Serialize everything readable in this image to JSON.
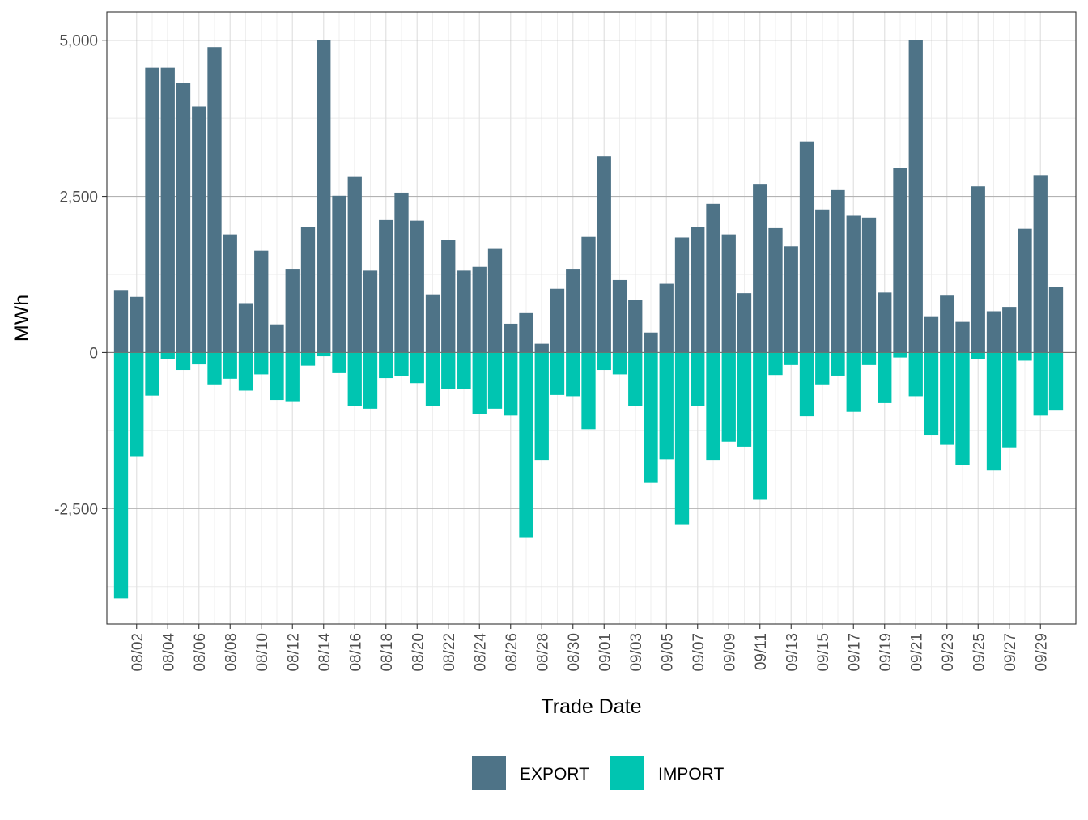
{
  "colors": {
    "export": "#4E7387",
    "import": "#00C5B1",
    "grid_major": "#b3b3b3",
    "grid_minor": "#ebebeb",
    "panel_border": "#333333",
    "tick_text": "#4d4d4d"
  },
  "chart_data": {
    "type": "bar",
    "title": "",
    "xlabel": "Trade Date",
    "ylabel": "MWh",
    "ylim": [
      -4350,
      5450
    ],
    "y_ticks": [
      -2500,
      0,
      2500,
      5000
    ],
    "y_tick_labels": [
      "-2,500",
      "0",
      "2,500",
      "5,000"
    ],
    "grid": true,
    "legend_position": "bottom",
    "categories": [
      "08/01",
      "08/02",
      "08/03",
      "08/04",
      "08/05",
      "08/06",
      "08/07",
      "08/08",
      "08/09",
      "08/10",
      "08/11",
      "08/12",
      "08/13",
      "08/14",
      "08/15",
      "08/16",
      "08/17",
      "08/18",
      "08/19",
      "08/20",
      "08/21",
      "08/22",
      "08/23",
      "08/24",
      "08/25",
      "08/26",
      "08/27",
      "08/28",
      "08/29",
      "08/30",
      "08/31",
      "09/01",
      "09/02",
      "09/03",
      "09/04",
      "09/05",
      "09/06",
      "09/07",
      "09/08",
      "09/09",
      "09/10",
      "09/11",
      "09/12",
      "09/13",
      "09/14",
      "09/15",
      "09/16",
      "09/17",
      "09/18",
      "09/19",
      "09/20",
      "09/21",
      "09/22",
      "09/23",
      "09/24",
      "09/25",
      "09/26",
      "09/27",
      "09/28",
      "09/29",
      "09/30"
    ],
    "x_tick_labels": [
      "08/02",
      "08/04",
      "08/06",
      "08/08",
      "08/10",
      "08/12",
      "08/14",
      "08/16",
      "08/18",
      "08/20",
      "08/22",
      "08/24",
      "08/26",
      "08/28",
      "08/30",
      "09/01",
      "09/03",
      "09/05",
      "09/07",
      "09/09",
      "09/11",
      "09/13",
      "09/15",
      "09/17",
      "09/19",
      "09/21",
      "09/23",
      "09/25",
      "09/27",
      "09/29"
    ],
    "series": [
      {
        "name": "EXPORT",
        "values": [
          1000,
          890,
          4560,
          4560,
          4310,
          3940,
          4890,
          1890,
          790,
          1630,
          450,
          1340,
          2010,
          5000,
          2510,
          2810,
          1310,
          2120,
          2560,
          2110,
          930,
          1800,
          1310,
          1370,
          1670,
          460,
          630,
          140,
          1020,
          1340,
          1850,
          3140,
          1160,
          840,
          320,
          1100,
          1840,
          2010,
          2380,
          1890,
          950,
          2700,
          1990,
          1700,
          3380,
          2290,
          2600,
          2190,
          2160,
          960,
          2960,
          5000,
          580,
          910,
          490,
          2660,
          660,
          730,
          1980,
          2840,
          1050
        ]
      },
      {
        "name": "IMPORT",
        "values": [
          -3940,
          -1660,
          -690,
          -100,
          -280,
          -190,
          -510,
          -420,
          -610,
          -350,
          -760,
          -780,
          -210,
          -60,
          -330,
          -860,
          -900,
          -410,
          -380,
          -490,
          -860,
          -590,
          -590,
          -980,
          -900,
          -1010,
          -2970,
          -1720,
          -680,
          -700,
          -1230,
          -280,
          -350,
          -850,
          -2090,
          -1710,
          -2750,
          -850,
          -1720,
          -1430,
          -1510,
          -2360,
          -360,
          -200,
          -1020,
          -510,
          -370,
          -950,
          -200,
          -810,
          -80,
          -700,
          -1330,
          -1480,
          -1800,
          -100,
          -1890,
          -1520,
          -130,
          -1010,
          -930
        ]
      }
    ]
  }
}
